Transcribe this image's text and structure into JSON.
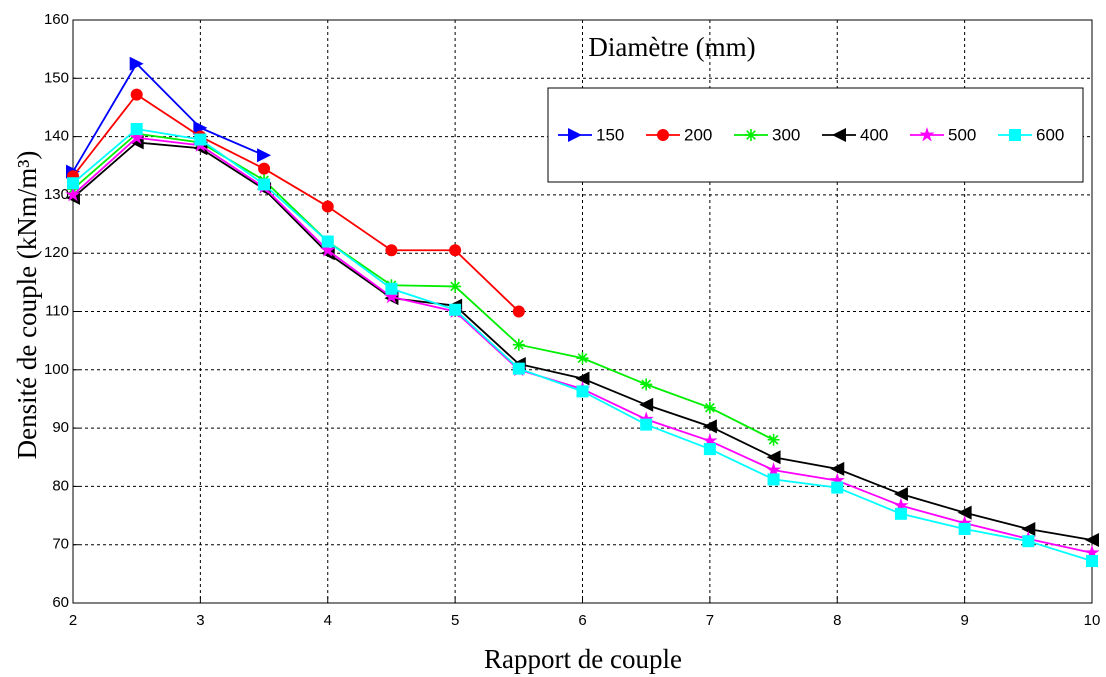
{
  "chart_data": {
    "type": "line",
    "xlabel": "Rapport de couple",
    "ylabel": "Densité de couple (kNm/m³)",
    "legend_title": "Diamètre (mm)",
    "legend": "upper right",
    "grid": true,
    "xlim": [
      2,
      10
    ],
    "ylim": [
      60,
      160
    ],
    "xticks": [
      2,
      3,
      4,
      5,
      6,
      7,
      8,
      9,
      10
    ],
    "yticks": [
      60,
      70,
      80,
      90,
      100,
      110,
      120,
      130,
      140,
      150,
      160
    ],
    "x": [
      2,
      2.5,
      3,
      3.5,
      4,
      4.5,
      5,
      5.5,
      6,
      6.5,
      7,
      7.5,
      8,
      8.5,
      9,
      9.5,
      10
    ],
    "series": [
      {
        "name": "150",
        "color": "#0000ff",
        "marker": "triangle-right",
        "values": [
          134,
          152.5,
          141.5,
          136.8,
          null,
          null,
          null,
          null,
          null,
          null,
          null,
          null,
          null,
          null,
          null,
          null,
          null
        ]
      },
      {
        "name": "200",
        "color": "#ff0000",
        "marker": "circle",
        "values": [
          133.2,
          147.2,
          140,
          134.5,
          128,
          120.5,
          120.5,
          110,
          null,
          null,
          null,
          null,
          null,
          null,
          null,
          null,
          null
        ]
      },
      {
        "name": "300",
        "color": "#00ee00",
        "marker": "asterisk",
        "values": [
          131,
          140.5,
          139,
          132.5,
          122,
          114.5,
          114.3,
          104.3,
          102,
          97.5,
          93.5,
          88,
          null,
          null,
          null,
          null,
          null
        ]
      },
      {
        "name": "400",
        "color": "#000000",
        "marker": "triangle-left",
        "values": [
          129.5,
          139,
          138,
          131,
          120,
          112.3,
          111,
          101,
          98.5,
          94,
          90.3,
          85,
          83,
          78.7,
          75.5,
          72.7,
          70.8
        ]
      },
      {
        "name": "500",
        "color": "#ff00ff",
        "marker": "star",
        "values": [
          130,
          139.8,
          138.5,
          131.3,
          120.5,
          112.5,
          110,
          100,
          96.7,
          91.5,
          87.8,
          82.8,
          81,
          76.7,
          73.7,
          71,
          68.6
        ]
      },
      {
        "name": "600",
        "color": "#00ffff",
        "marker": "square",
        "values": [
          132,
          141.3,
          139.5,
          131.8,
          122,
          113.9,
          110.3,
          100.2,
          96.3,
          90.6,
          86.4,
          81.2,
          79.8,
          75.3,
          72.7,
          70.6,
          67.2
        ]
      }
    ]
  }
}
